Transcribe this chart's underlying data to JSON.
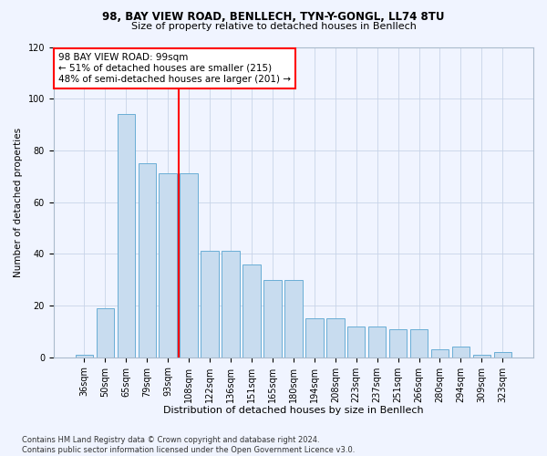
{
  "title1": "98, BAY VIEW ROAD, BENLLECH, TYN-Y-GONGL, LL74 8TU",
  "title2": "Size of property relative to detached houses in Benllech",
  "xlabel": "Distribution of detached houses by size in Benllech",
  "ylabel": "Number of detached properties",
  "categories": [
    "36sqm",
    "50sqm",
    "65sqm",
    "79sqm",
    "93sqm",
    "108sqm",
    "122sqm",
    "136sqm",
    "151sqm",
    "165sqm",
    "180sqm",
    "194sqm",
    "208sqm",
    "223sqm",
    "237sqm",
    "251sqm",
    "266sqm",
    "280sqm",
    "294sqm",
    "309sqm",
    "323sqm"
  ],
  "values": [
    1,
    19,
    94,
    75,
    71,
    71,
    41,
    41,
    36,
    30,
    30,
    15,
    15,
    12,
    12,
    11,
    11,
    3,
    4,
    1,
    2
  ],
  "bar_color": "#c8dcef",
  "bar_edge_color": "#6aaed6",
  "vline_x": 4.5,
  "vline_color": "red",
  "annotation_text": "98 BAY VIEW ROAD: 99sqm\n← 51% of detached houses are smaller (215)\n48% of semi-detached houses are larger (201) →",
  "annotation_box_color": "white",
  "annotation_box_edge": "red",
  "ylim": [
    0,
    120
  ],
  "yticks": [
    0,
    20,
    40,
    60,
    80,
    100,
    120
  ],
  "footer": "Contains HM Land Registry data © Crown copyright and database right 2024.\nContains public sector information licensed under the Open Government Licence v3.0.",
  "bg_color": "#f0f4ff",
  "grid_color": "#c8d4e8",
  "title1_fontsize": 8.5,
  "title2_fontsize": 8.0,
  "xlabel_fontsize": 8.0,
  "ylabel_fontsize": 7.5,
  "tick_fontsize": 7.0,
  "annot_fontsize": 7.5,
  "footer_fontsize": 6.0
}
